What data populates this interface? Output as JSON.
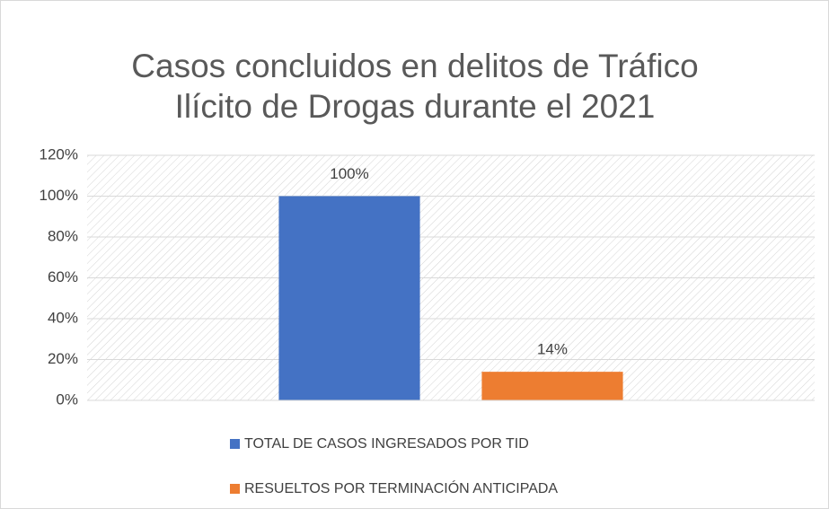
{
  "chart_data": {
    "type": "bar",
    "title": [
      "Casos concluidos en delitos de Tráfico",
      "Ilícito de Drogas durante el 2021"
    ],
    "categories": [
      null
    ],
    "series": [
      {
        "name": "TOTAL DE CASOS INGRESADOS POR TID",
        "color": "#4472c4",
        "values": [
          100
        ],
        "value_labels": [
          "100%"
        ]
      },
      {
        "name": "RESUELTOS POR TERMINACIÓN ANTICIPADA",
        "color": "#ed7d31",
        "values": [
          14
        ],
        "value_labels": [
          "14%"
        ]
      }
    ],
    "ylim": [
      0,
      120
    ],
    "yticks": [
      {
        "value": 0,
        "label": "0%"
      },
      {
        "value": 20,
        "label": "20%"
      },
      {
        "value": 40,
        "label": "40%"
      },
      {
        "value": 60,
        "label": "60%"
      },
      {
        "value": 80,
        "label": "80%"
      },
      {
        "value": 100,
        "label": "100%"
      },
      {
        "value": 120,
        "label": "120%"
      }
    ],
    "grid": true,
    "legend": "bottom"
  }
}
